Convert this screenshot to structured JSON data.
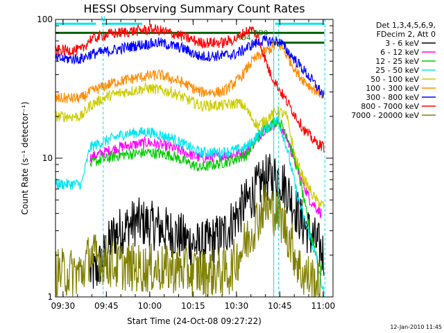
{
  "chart_data": {
    "type": "line",
    "title": "HESSI Observing Summary Count Rates",
    "xlabel": "Start Time (24-Oct-08 09:27:22)",
    "ylabel": "Count Rate (s⁻¹ detector⁻¹)",
    "yscale": "log",
    "ylim": [
      1,
      100
    ],
    "xlim_minutes": [
      0,
      96
    ],
    "x_ticks": [
      {
        "label": "09:30",
        "t": 2.6
      },
      {
        "label": "09:45",
        "t": 17.6
      },
      {
        "label": "10:00",
        "t": 32.6
      },
      {
        "label": "10:15",
        "t": 47.6
      },
      {
        "label": "10:30",
        "t": 62.6
      },
      {
        "label": "10:45",
        "t": 77.6
      },
      {
        "label": "11:00",
        "t": 92.6
      }
    ],
    "y_ticks": [
      {
        "label": "1",
        "v": 1
      },
      {
        "label": "10",
        "v": 10
      },
      {
        "label": "100",
        "v": 100
      }
    ],
    "legend_header": [
      "Det 1,3,4,5,6,9,",
      "FDecim 2, Att 0"
    ],
    "legend_position": "right",
    "series": [
      {
        "name": "3 - 6 keV",
        "color": "#000000",
        "points": [
          [
            12,
            1.5
          ],
          [
            14,
            1.5
          ],
          [
            20,
            2.8
          ],
          [
            28,
            3.5
          ],
          [
            35,
            3.2
          ],
          [
            42,
            2.8
          ],
          [
            50,
            2.3
          ],
          [
            58,
            2.8
          ],
          [
            65,
            4.5
          ],
          [
            72,
            7
          ],
          [
            77,
            7.5
          ],
          [
            80,
            6
          ],
          [
            85,
            3.5
          ],
          [
            90,
            2.5
          ],
          [
            93,
            2
          ]
        ]
      },
      {
        "name": "6 - 12 keV",
        "color": "#ff00ff",
        "points": [
          [
            12,
            10
          ],
          [
            14,
            10.5
          ],
          [
            22,
            12
          ],
          [
            32,
            13
          ],
          [
            40,
            12
          ],
          [
            50,
            10
          ],
          [
            60,
            10.5
          ],
          [
            66,
            11
          ],
          [
            72,
            16
          ],
          [
            77,
            18
          ],
          [
            80,
            14
          ],
          [
            84,
            8
          ],
          [
            88,
            5
          ],
          [
            92,
            4
          ]
        ]
      },
      {
        "name": "12 - 25 keV",
        "color": "#00cc00",
        "points": [
          [
            12,
            9
          ],
          [
            14,
            9.5
          ],
          [
            22,
            10.5
          ],
          [
            32,
            11
          ],
          [
            40,
            10.5
          ],
          [
            50,
            8.5
          ],
          [
            60,
            9.5
          ],
          [
            66,
            10.5
          ],
          [
            72,
            16
          ],
          [
            77,
            19
          ],
          [
            80,
            15
          ],
          [
            84,
            8
          ],
          [
            88,
            3
          ],
          [
            92,
            1.5
          ]
        ]
      },
      {
        "name": "25 - 50 keV",
        "color": "#00e5ee",
        "points": [
          [
            0,
            6.5
          ],
          [
            9,
            6.5
          ],
          [
            12,
            12
          ],
          [
            16,
            13
          ],
          [
            24,
            15
          ],
          [
            32,
            15.5
          ],
          [
            40,
            14
          ],
          [
            50,
            11
          ],
          [
            58,
            11
          ],
          [
            63,
            11.5
          ],
          [
            66,
            12
          ],
          [
            72,
            16
          ],
          [
            77,
            19
          ],
          [
            80,
            12
          ],
          [
            84,
            5
          ],
          [
            90,
            2
          ],
          [
            93,
            1
          ]
        ]
      },
      {
        "name": "50 - 100 keV",
        "color": "#cccc00",
        "points": [
          [
            0,
            20
          ],
          [
            9,
            20
          ],
          [
            12,
            24
          ],
          [
            18,
            28
          ],
          [
            24,
            30
          ],
          [
            32,
            32
          ],
          [
            40,
            30
          ],
          [
            50,
            24
          ],
          [
            58,
            24
          ],
          [
            63,
            25
          ],
          [
            65,
            24
          ],
          [
            70,
            17
          ],
          [
            74,
            20
          ],
          [
            77,
            22
          ],
          [
            80,
            20
          ],
          [
            83,
            10
          ],
          [
            86,
            7
          ],
          [
            90,
            5
          ],
          [
            93,
            4.5
          ]
        ]
      },
      {
        "name": "100 - 300 keV",
        "color": "#ff8c00",
        "points": [
          [
            0,
            27
          ],
          [
            9,
            27
          ],
          [
            12,
            30
          ],
          [
            20,
            35
          ],
          [
            28,
            38
          ],
          [
            36,
            40
          ],
          [
            44,
            35
          ],
          [
            50,
            30
          ],
          [
            58,
            30
          ],
          [
            64,
            38
          ],
          [
            68,
            50
          ],
          [
            72,
            58
          ],
          [
            76,
            64
          ],
          [
            78,
            65
          ],
          [
            80,
            55
          ],
          [
            84,
            40
          ],
          [
            88,
            33
          ],
          [
            93,
            28
          ]
        ]
      },
      {
        "name": "300 - 800 keV",
        "color": "#0000ff",
        "points": [
          [
            0,
            52
          ],
          [
            9,
            52
          ],
          [
            12,
            56
          ],
          [
            20,
            60
          ],
          [
            28,
            65
          ],
          [
            36,
            68
          ],
          [
            44,
            62
          ],
          [
            50,
            54
          ],
          [
            58,
            55
          ],
          [
            62,
            56
          ],
          [
            65,
            60
          ],
          [
            68,
            66
          ],
          [
            72,
            70
          ],
          [
            76,
            70
          ],
          [
            78,
            68
          ],
          [
            80,
            60
          ],
          [
            84,
            48
          ],
          [
            88,
            38
          ],
          [
            93,
            28
          ]
        ]
      },
      {
        "name": "800 - 7000 keV",
        "color": "#ff0000",
        "points": [
          [
            0,
            60
          ],
          [
            9,
            60
          ],
          [
            12,
            72
          ],
          [
            18,
            78
          ],
          [
            26,
            82
          ],
          [
            34,
            85
          ],
          [
            42,
            78
          ],
          [
            50,
            68
          ],
          [
            58,
            68
          ],
          [
            62,
            72
          ],
          [
            66,
            82
          ],
          [
            68,
            85
          ],
          [
            70,
            75
          ],
          [
            74,
            42
          ],
          [
            78,
            30
          ],
          [
            82,
            22
          ],
          [
            86,
            16
          ],
          [
            90,
            13
          ],
          [
            93,
            12
          ]
        ]
      },
      {
        "name": "7000 - 20000 keV",
        "color": "#808000",
        "points": [
          [
            0,
            1.5
          ],
          [
            9,
            1.5
          ],
          [
            12,
            2
          ],
          [
            20,
            1.7
          ],
          [
            30,
            1.6
          ],
          [
            40,
            1.6
          ],
          [
            50,
            1.5
          ],
          [
            60,
            1.5
          ],
          [
            66,
            2.5
          ],
          [
            72,
            4.5
          ],
          [
            77,
            4
          ],
          [
            80,
            3
          ],
          [
            85,
            1.5
          ],
          [
            92,
            1.2
          ]
        ]
      }
    ],
    "annotations": [
      {
        "text": "N",
        "t": 15.5,
        "v": 97,
        "color": "#00e5ee"
      },
      {
        "text": "RD0",
        "t": 68.5,
        "v": 77,
        "color": "#006400"
      },
      {
        "text": "RD4",
        "t": 62.5,
        "v": 71,
        "color": "#006400"
      }
    ],
    "bands": [
      {
        "color": "#00e5ee",
        "segments": [
          [
            0,
            14
          ],
          [
            16,
            30
          ],
          [
            76,
            93
          ]
        ],
        "v": 93
      },
      {
        "color": "#006400",
        "segments": [
          [
            0,
            64
          ],
          [
            66,
            93
          ]
        ],
        "v": 80
      },
      {
        "color": "#006400",
        "segments": [
          [
            74,
            93
          ]
        ],
        "v": 68
      }
    ],
    "vertical_lines_solid": [
      {
        "t": 75.5,
        "color": "#00e5ee"
      }
    ],
    "vertical_lines_dashed": [
      {
        "t": 16.5,
        "color": "#00e5ee"
      },
      {
        "t": 77.2,
        "color": "#00e5ee"
      },
      {
        "t": 93.2,
        "color": "#00e5ee"
      }
    ],
    "footer_date": "12-Jan-2010 11:45"
  }
}
